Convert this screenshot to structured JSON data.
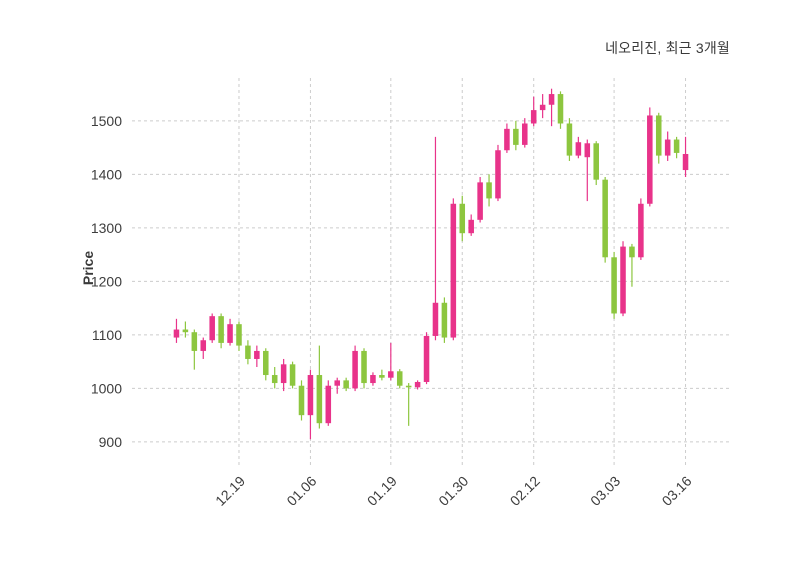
{
  "title": "네오리진, 최근 3개월",
  "ylabel": "Price",
  "chart_data": {
    "type": "candlestick",
    "title": "네오리진, 최근 3개월",
    "ylabel": "Price",
    "ylim": [
      855,
      1580
    ],
    "y_ticks": [
      900,
      1000,
      1100,
      1200,
      1300,
      1400,
      1500
    ],
    "x_ticks": [
      {
        "index": 7,
        "label": "12.19"
      },
      {
        "index": 15,
        "label": "01.06"
      },
      {
        "index": 24,
        "label": "01.19"
      },
      {
        "index": 32,
        "label": "01.30"
      },
      {
        "index": 40,
        "label": "02.12"
      },
      {
        "index": 49,
        "label": "03.03"
      },
      {
        "index": 57,
        "label": "03.16"
      }
    ],
    "grid": "dashed",
    "legend": "none",
    "up_color": "#e8338a",
    "down_color": "#8dc63f",
    "grid_color": "#cccccc",
    "text_color": "#3d3d3d",
    "candles": [
      [
        1095,
        1130,
        1085,
        1110
      ],
      [
        1110,
        1125,
        1095,
        1105
      ],
      [
        1105,
        1110,
        1035,
        1070
      ],
      [
        1070,
        1095,
        1055,
        1090
      ],
      [
        1090,
        1140,
        1085,
        1135
      ],
      [
        1135,
        1140,
        1075,
        1085
      ],
      [
        1085,
        1130,
        1080,
        1120
      ],
      [
        1120,
        1125,
        1070,
        1080
      ],
      [
        1080,
        1090,
        1045,
        1055
      ],
      [
        1055,
        1080,
        1040,
        1070
      ],
      [
        1070,
        1075,
        1015,
        1025
      ],
      [
        1025,
        1040,
        1000,
        1010
      ],
      [
        1010,
        1055,
        995,
        1045
      ],
      [
        1045,
        1050,
        1000,
        1005
      ],
      [
        1005,
        1015,
        940,
        950
      ],
      [
        950,
        1035,
        905,
        1025
      ],
      [
        1025,
        1080,
        925,
        935
      ],
      [
        935,
        1015,
        930,
        1005
      ],
      [
        1005,
        1020,
        990,
        1015
      ],
      [
        1015,
        1020,
        995,
        1000
      ],
      [
        1000,
        1080,
        995,
        1070
      ],
      [
        1070,
        1075,
        1000,
        1010
      ],
      [
        1010,
        1030,
        1005,
        1025
      ],
      [
        1025,
        1035,
        1015,
        1020
      ],
      [
        1020,
        1085,
        1015,
        1032
      ],
      [
        1032,
        1036,
        1000,
        1005
      ],
      [
        1005,
        1010,
        930,
        1002
      ],
      [
        1002,
        1015,
        998,
        1012
      ],
      [
        1012,
        1105,
        1008,
        1098
      ],
      [
        1098,
        1470,
        1090,
        1160
      ],
      [
        1160,
        1170,
        1085,
        1095
      ],
      [
        1095,
        1355,
        1090,
        1345
      ],
      [
        1345,
        1360,
        1275,
        1290
      ],
      [
        1290,
        1325,
        1285,
        1315
      ],
      [
        1315,
        1395,
        1310,
        1385
      ],
      [
        1385,
        1400,
        1340,
        1355
      ],
      [
        1355,
        1455,
        1350,
        1445
      ],
      [
        1445,
        1495,
        1440,
        1485
      ],
      [
        1485,
        1500,
        1445,
        1455
      ],
      [
        1455,
        1505,
        1450,
        1495
      ],
      [
        1495,
        1545,
        1490,
        1520
      ],
      [
        1520,
        1550,
        1505,
        1530
      ],
      [
        1530,
        1560,
        1490,
        1550
      ],
      [
        1550,
        1555,
        1485,
        1495
      ],
      [
        1495,
        1505,
        1425,
        1435
      ],
      [
        1435,
        1470,
        1430,
        1460
      ],
      [
        1432,
        1465,
        1350,
        1458
      ],
      [
        1458,
        1462,
        1380,
        1390
      ],
      [
        1390,
        1395,
        1235,
        1245
      ],
      [
        1245,
        1255,
        1130,
        1140
      ],
      [
        1140,
        1275,
        1135,
        1265
      ],
      [
        1265,
        1270,
        1190,
        1245
      ],
      [
        1245,
        1355,
        1240,
        1345
      ],
      [
        1345,
        1525,
        1340,
        1510
      ],
      [
        1510,
        1515,
        1420,
        1435
      ],
      [
        1435,
        1480,
        1425,
        1465
      ],
      [
        1465,
        1470,
        1430,
        1440
      ],
      [
        1408,
        1470,
        1395,
        1438
      ]
    ]
  }
}
